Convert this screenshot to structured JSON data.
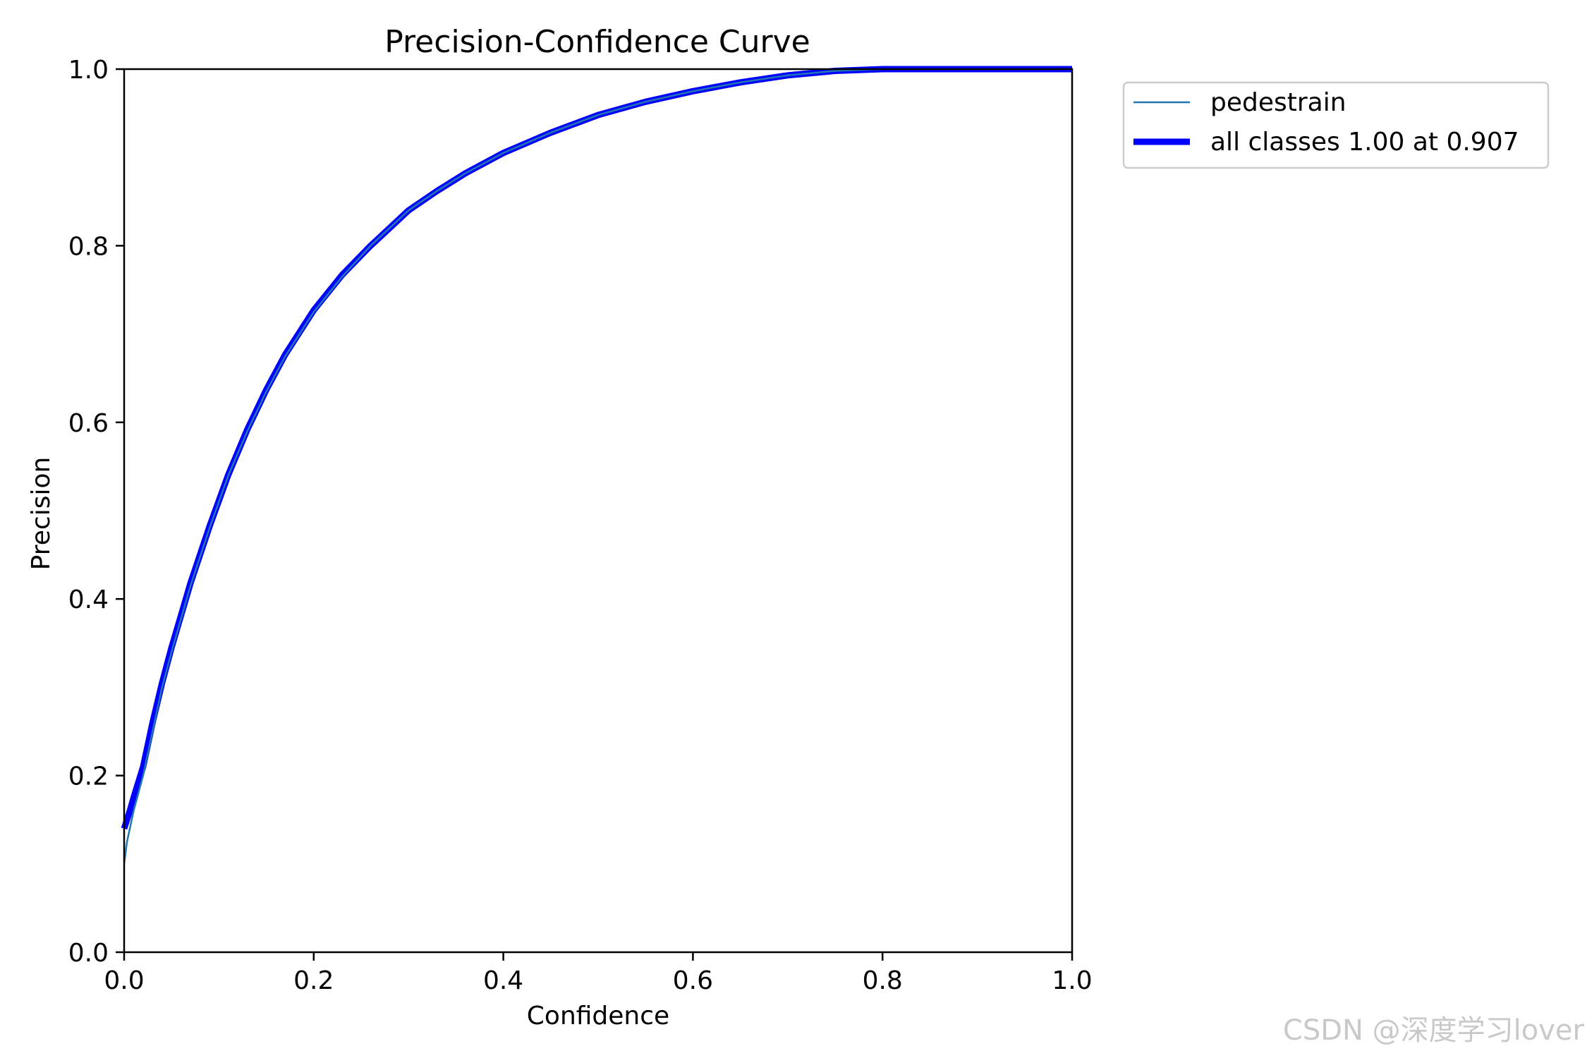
{
  "chart_data": {
    "type": "line",
    "title": "Precision-Confidence Curve",
    "xlabel": "Confidence",
    "ylabel": "Precision",
    "xlim": [
      0,
      1
    ],
    "ylim": [
      0,
      1
    ],
    "xticks": [
      "0.0",
      "0.2",
      "0.4",
      "0.6",
      "0.8",
      "1.0"
    ],
    "yticks": [
      "0.0",
      "0.2",
      "0.4",
      "0.6",
      "0.8",
      "1.0"
    ],
    "grid": false,
    "legend_position": "outside-top-right",
    "series": [
      {
        "name": "pedestrain",
        "color": "#1f77b4",
        "x": [
          0.0,
          0.003,
          0.006,
          0.01,
          0.02,
          0.03,
          0.04,
          0.05,
          0.07,
          0.09,
          0.11,
          0.13,
          0.15,
          0.17,
          0.2,
          0.23,
          0.26,
          0.28,
          0.3,
          0.33,
          0.36,
          0.4,
          0.45,
          0.5,
          0.55,
          0.6,
          0.65,
          0.7,
          0.75,
          0.8,
          0.85,
          0.88,
          0.9,
          0.95,
          1.0
        ],
        "y": [
          0.1,
          0.125,
          0.14,
          0.16,
          0.2,
          0.25,
          0.3,
          0.34,
          0.415,
          0.48,
          0.54,
          0.59,
          0.635,
          0.675,
          0.725,
          0.765,
          0.8,
          0.82,
          0.84,
          0.862,
          0.882,
          0.905,
          0.928,
          0.948,
          0.963,
          0.975,
          0.985,
          0.993,
          0.998,
          1.0,
          1.0,
          1.0,
          1.0,
          1.0,
          1.0
        ]
      },
      {
        "name": "all classes 1.00 at 0.907",
        "color": "#0000ff",
        "x": [
          0.0,
          0.003,
          0.006,
          0.01,
          0.02,
          0.03,
          0.04,
          0.05,
          0.07,
          0.09,
          0.11,
          0.13,
          0.15,
          0.17,
          0.2,
          0.23,
          0.26,
          0.28,
          0.3,
          0.33,
          0.36,
          0.4,
          0.45,
          0.5,
          0.55,
          0.6,
          0.65,
          0.7,
          0.75,
          0.8,
          0.85,
          0.88,
          0.9,
          0.95,
          1.0
        ],
        "y": [
          0.14,
          0.15,
          0.16,
          0.175,
          0.21,
          0.26,
          0.305,
          0.345,
          0.418,
          0.482,
          0.541,
          0.592,
          0.637,
          0.677,
          0.727,
          0.767,
          0.8,
          0.82,
          0.84,
          0.862,
          0.882,
          0.905,
          0.928,
          0.948,
          0.963,
          0.975,
          0.985,
          0.993,
          0.998,
          1.0,
          1.0,
          1.0,
          1.0,
          1.0,
          1.0
        ]
      }
    ]
  },
  "watermark": "CSDN @深度学习lover"
}
